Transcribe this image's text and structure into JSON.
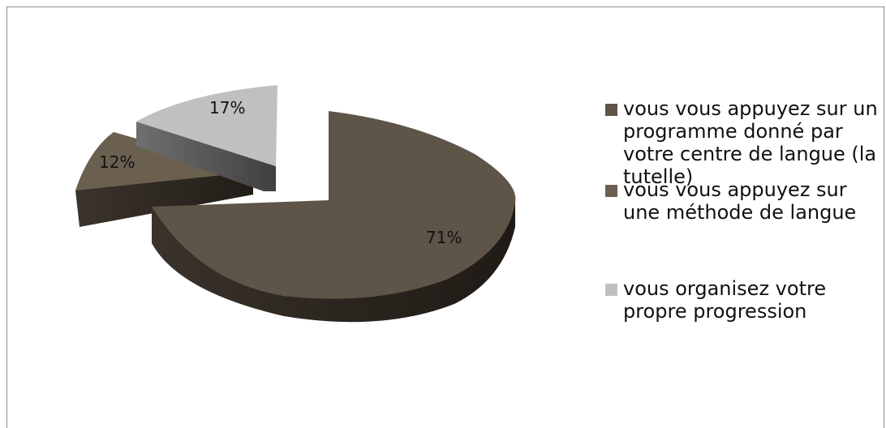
{
  "chart_data": {
    "type": "pie",
    "title": "",
    "slices": [
      {
        "label": "vous vous appuyez sur un programme donné par votre centre de langue (la tutelle)",
        "value": 71,
        "display": "71%",
        "color": "#5e5448"
      },
      {
        "label": "vous vous appuyez sur une méthode de langue",
        "value": 12,
        "display": "12%",
        "color": "#6b6050"
      },
      {
        "label": "vous organisez votre propre progression",
        "value": 17,
        "display": "17%",
        "color": "#c0c0c0"
      }
    ],
    "style": "3d-exploded",
    "legend_position": "right"
  }
}
